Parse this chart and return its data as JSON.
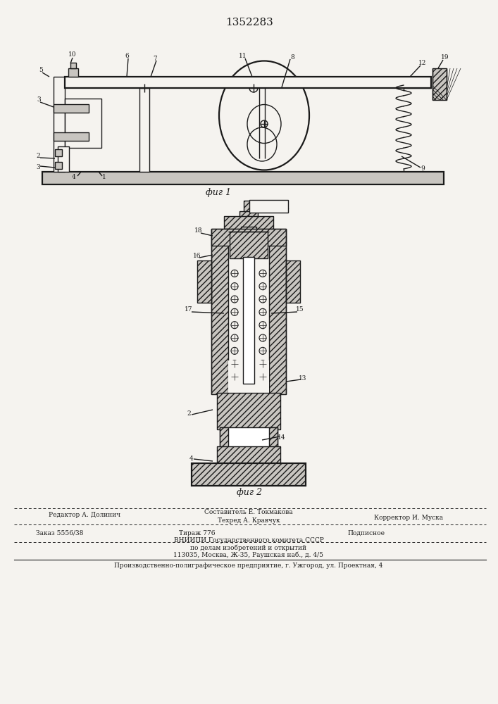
{
  "patent_number": "1352283",
  "fig1_caption": "фиг 1",
  "fig2_caption": "фиг 2",
  "footer_editor": "Редактор А. Долинич",
  "footer_composer": "Составитель Е. Токмакова",
  "footer_techred": "Техред А. Кравчук",
  "footer_corrector": "Корректор И. Муска",
  "footer_order": "Заказ 5556/38",
  "footer_print": "Тираж 776",
  "footer_subscription": "Подписное",
  "footer_vniipи": "ВНИИПИ Государственного комитета СССР",
  "footer_affairs": "по делам изобретений и открытий",
  "footer_address": "113035, Москва, Ж-35, Раушская наб., д. 4/5",
  "footer_plant": "Производственно-полиграфическое предприятие, г. Ужгород, ул. Проектная, 4",
  "bg_color": "#f5f3ef",
  "line_color": "#1a1a1a"
}
